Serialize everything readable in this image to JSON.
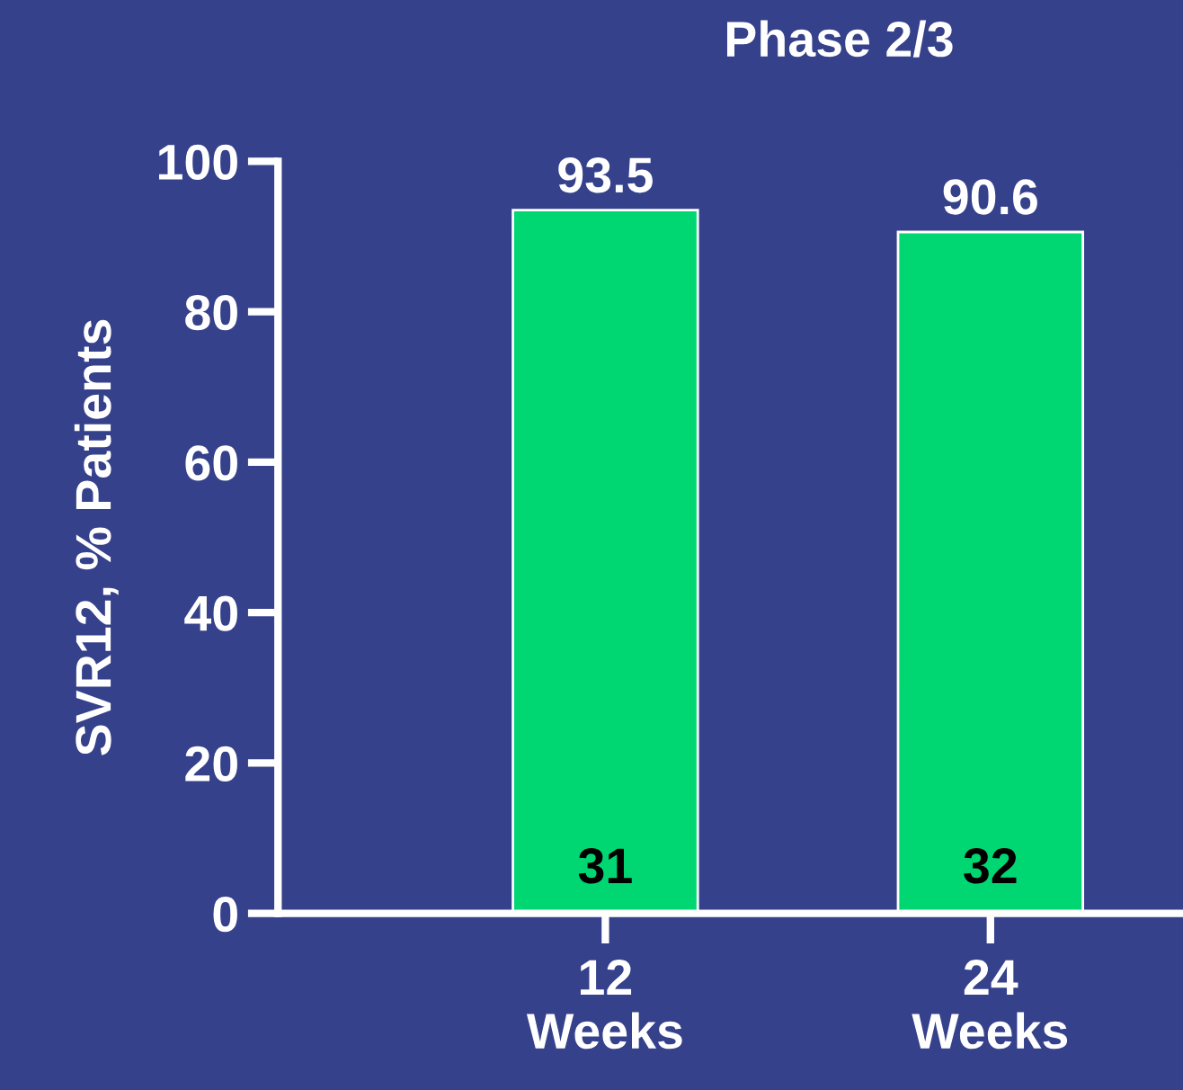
{
  "chart_data": {
    "type": "bar",
    "title": "Phase 2/3",
    "ylabel": "SVR12, % Patients",
    "categories": [
      "12\nWeeks",
      "24\nWeeks"
    ],
    "values": [
      93.5,
      90.6
    ],
    "color": "#00d773",
    "data_labels": true,
    "ylim": [
      0,
      100
    ],
    "yticks": [
      0,
      20,
      40,
      60,
      80,
      100
    ],
    "grid": false,
    "legend": false,
    "annotations": [
      {
        "text": "31",
        "x": "12\nWeeks",
        "y": 0
      },
      {
        "text": "32",
        "x": "24\nWeeks",
        "y": 0
      }
    ]
  }
}
